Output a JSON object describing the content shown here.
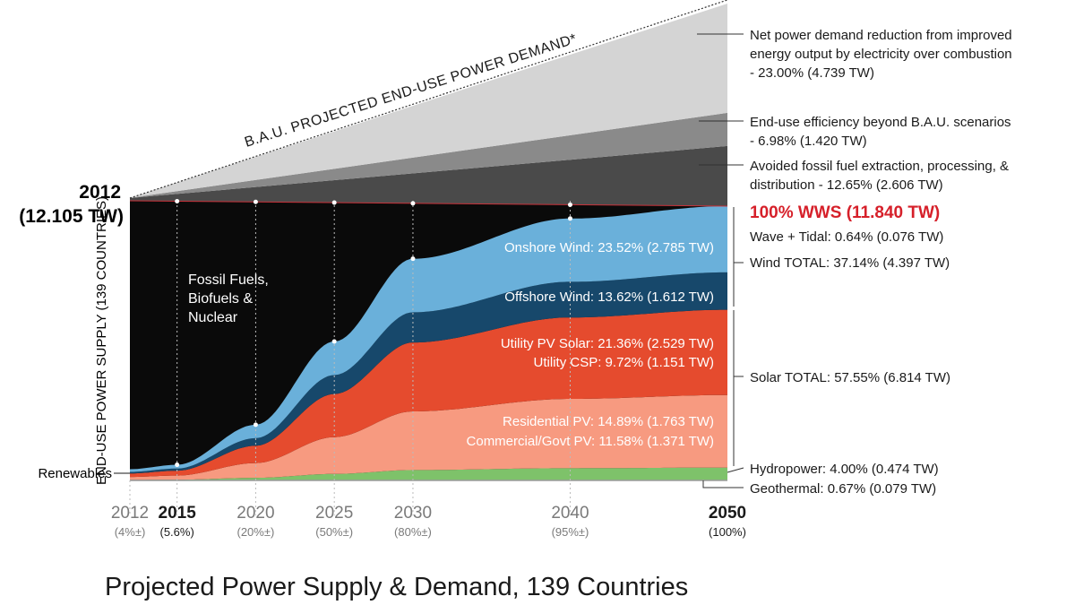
{
  "chart_data": {
    "type": "area",
    "title": "Projected Power Supply & Demand, 139 Countries",
    "ylabel": "END-USE POWER SUPPLY (139 COUNTRIES)",
    "start": {
      "year": "2012",
      "value": "(12.105 TW)"
    },
    "demand_line_label": "B.A.U. PROJECTED END-USE POWER DEMAND*",
    "x_ticks": [
      {
        "year": "2012",
        "share": "(4%±)",
        "emph": false
      },
      {
        "year": "2015",
        "share": "(5.6%)",
        "emph": true
      },
      {
        "year": "2020",
        "share": "(20%±)",
        "emph": false
      },
      {
        "year": "2025",
        "share": "(50%±)",
        "emph": false
      },
      {
        "year": "2030",
        "share": "(80%±)",
        "emph": false
      },
      {
        "year": "2040",
        "share": "(95%±)",
        "emph": false
      },
      {
        "year": "2050",
        "share": "(100%)",
        "emph": true
      }
    ],
    "wws_share_pct": {
      "2012": 4,
      "2015": 5.6,
      "2020": 20,
      "2025": 50,
      "2030": 80,
      "2040": 95,
      "2050": 100
    },
    "fossil_label": [
      "Fossil Fuels,",
      "Biofuels &",
      "Nuclear"
    ],
    "renewables_label": "Renewables",
    "wws_2050_share_pct": [
      {
        "name": "Geothermal",
        "value": 0.67,
        "color": "#6f7a6f"
      },
      {
        "name": "Hydropower",
        "value": 4.0,
        "color": "#7ec26a"
      },
      {
        "name": "Commercial/Govt PV",
        "value": 11.58,
        "color": "#f79a80"
      },
      {
        "name": "Residential PV",
        "value": 14.89,
        "color": "#f79a80"
      },
      {
        "name": "Utility CSP",
        "value": 9.72,
        "color": "#e54b2e"
      },
      {
        "name": "Utility PV Solar",
        "value": 21.36,
        "color": "#e54b2e"
      },
      {
        "name": "Offshore Wind",
        "value": 13.62,
        "color": "#17486b"
      },
      {
        "name": "Onshore Wind",
        "value": 23.52,
        "color": "#6ab0da"
      },
      {
        "name": "Wave + Tidal",
        "value": 0.64,
        "color": "#5a5a5a"
      }
    ],
    "reductions": [
      {
        "name": "Avoided fossil fuel extraction, processing, & distribution",
        "value_pct": 12.65,
        "tw": 2.606,
        "color": "#4a4a4a"
      },
      {
        "name": "End-use efficiency beyond B.A.U. scenarios",
        "value_pct": 6.98,
        "tw": 1.42,
        "color": "#8a8a8a"
      },
      {
        "name": "Net power demand reduction from improved energy output by electricity over combustion",
        "value_pct": 23.0,
        "tw": 4.739,
        "color": "#d4d4d4"
      }
    ],
    "band_labels": {
      "onshore": "Onshore Wind: 23.52% (2.785 TW)",
      "offshore": "Offshore Wind: 13.62% (1.612 TW)",
      "utility_pv": "Utility PV Solar: 21.36% (2.529 TW)",
      "utility_csp": "Utility CSP: 9.72% (1.151 TW)",
      "residential": "Residential PV: 14.89% (1.763 TW)",
      "commercial": "Commercial/Govt PV: 11.58% (1.371 TW)"
    },
    "annotations": {
      "net_reduction": [
        "Net power demand reduction from improved",
        "energy output by electricity over combustion",
        "- 23.00% (4.739 TW)"
      ],
      "efficiency": [
        "End-use efficiency beyond B.A.U. scenarios",
        "- 6.98% (1.420 TW)"
      ],
      "avoided": [
        "Avoided fossil fuel extraction, processing, &",
        "distribution  - 12.65% (2.606 TW)"
      ],
      "wws": "100% WWS (11.840 TW)",
      "wave": "Wave + Tidal: 0.64% (0.076 TW)",
      "wind_total": "Wind TOTAL: 37.14% (4.397 TW)",
      "solar_total": "Solar TOTAL: 57.55% (6.814 TW)",
      "hydro": "Hydropower: 4.00% (0.474 TW)",
      "geothermal": "Geothermal: 0.67% (0.079 TW)"
    }
  }
}
